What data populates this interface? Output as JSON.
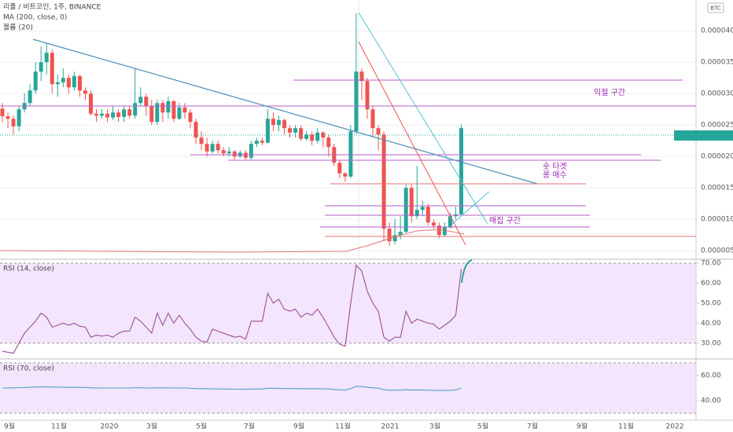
{
  "chart_data": {
    "type": "candlestick",
    "title": "리플 / 비트코인, 1주, BINANCE",
    "indicator_labels": [
      "MA (200, close, 0)",
      "볼륨 (20)"
    ],
    "currency": "BTC",
    "up_color": "#26a69a",
    "down_color": "#ef5350",
    "open": [
      2.76e-05,
      2.64e-05,
      2.6e-05,
      2.48e-05,
      2.75e-05,
      2.85e-05,
      3.05e-05,
      3.35e-05,
      3.5e-05,
      3.65e-05,
      3.15e-05,
      3.18e-05,
      3.25e-05,
      3.1e-05,
      3.28e-05,
      3.05e-05,
      3e-05,
      2.68e-05,
      2.65e-05,
      2.68e-05,
      2.62e-05,
      2.7e-05,
      2.63e-05,
      2.75e-05,
      2.65e-05,
      2.85e-05,
      2.95e-05,
      2.8e-05,
      2.55e-05,
      2.85e-05,
      2.7e-05,
      2.88e-05,
      2.6e-05,
      2.78e-05,
      2.7e-05,
      2.55e-05,
      2.3e-05,
      2.2e-05,
      2.08e-05,
      2.2e-05,
      2.1e-05,
      2.05e-05,
      2.08e-05,
      2e-05,
      2.06e-05,
      1.98e-05,
      2.2e-05,
      2.25e-05,
      2.22e-05,
      2.6e-05,
      2.5e-05,
      2.58e-05,
      2.45e-05,
      2.38e-05,
      2.45e-05,
      2.28e-05,
      2.35e-05,
      2.25e-05,
      2.38e-05,
      2.3e-05,
      2.15e-05,
      1.9e-05,
      1.73e-05,
      1.68e-05,
      2.4e-05,
      3.35e-05,
      3.2e-05,
      2.75e-05,
      2.45e-05,
      2.35e-05,
      8.5e-06,
      6.5e-06,
      7.5e-06,
      8e-06,
      1.5e-05,
      1.05e-05,
      1.15e-05,
      1.2e-05,
      9.5e-06,
      9e-06,
      7.5e-06,
      8.8e-06,
      1.05e-05,
      1.08e-05
    ],
    "high": [
      2.85e-05,
      2.7e-05,
      2.65e-05,
      2.8e-05,
      3e-05,
      3.15e-05,
      3.5e-05,
      3.75e-05,
      3.8e-05,
      3.7e-05,
      3.3e-05,
      3.4e-05,
      3.3e-05,
      3.35e-05,
      3.3e-05,
      3.1e-05,
      3.05e-05,
      2.75e-05,
      2.75e-05,
      2.75e-05,
      2.8e-05,
      2.75e-05,
      2.8e-05,
      2.8e-05,
      3.39e-05,
      3.1e-05,
      3e-05,
      2.9e-05,
      2.9e-05,
      2.9e-05,
      2.95e-05,
      2.9e-05,
      2.85e-05,
      2.85e-05,
      2.75e-05,
      2.6e-05,
      2.4e-05,
      2.3e-05,
      2.25e-05,
      2.25e-05,
      2.15e-05,
      2.15e-05,
      2.1e-05,
      2.1e-05,
      2.1e-05,
      2.25e-05,
      2.3e-05,
      2.3e-05,
      2.75e-05,
      2.7e-05,
      2.65e-05,
      2.6e-05,
      2.5e-05,
      2.5e-05,
      2.5e-05,
      2.4e-05,
      2.4e-05,
      2.45e-05,
      2.4e-05,
      2.35e-05,
      2.2e-05,
      1.95e-05,
      1.75e-05,
      2.5e-05,
      4.28e-05,
      3.4e-05,
      3.25e-05,
      2.8e-05,
      2.5e-05,
      2.4e-05,
      9.5e-06,
      1e-05,
      1.05e-05,
      1.55e-05,
      1.55e-05,
      1.85e-05,
      1.3e-05,
      1.25e-05,
      1e-05,
      9.5e-06,
      9.5e-06,
      1.1e-05,
      1.2e-05,
      2.51e-05
    ],
    "low": [
      2.55e-05,
      2.45e-05,
      2.35e-05,
      2.4e-05,
      2.7e-05,
      2.8e-05,
      3e-05,
      3.2e-05,
      3.3e-05,
      3e-05,
      2.95e-05,
      3.1e-05,
      3e-05,
      3.05e-05,
      2.95e-05,
      2.9e-05,
      2.65e-05,
      2.55e-05,
      2.6e-05,
      2.55e-05,
      2.58e-05,
      2.55e-05,
      2.55e-05,
      2.6e-05,
      2.6e-05,
      2.8e-05,
      2.65e-05,
      2.5e-05,
      2.5e-05,
      2.55e-05,
      2.6e-05,
      2.55e-05,
      2.58e-05,
      2.6e-05,
      2.45e-05,
      2.2e-05,
      2.1e-05,
      2e-05,
      2.05e-05,
      2.05e-05,
      2e-05,
      2e-05,
      1.95e-05,
      1.98e-05,
      1.95e-05,
      1.95e-05,
      2.15e-05,
      2.18e-05,
      2.2e-05,
      2.4e-05,
      2.4e-05,
      2.35e-05,
      2.3e-05,
      2.3e-05,
      2.25e-05,
      2.25e-05,
      2.18e-05,
      2.2e-05,
      2.15e-05,
      2e-05,
      1.85e-05,
      1.65e-05,
      1.6e-05,
      1.65e-05,
      2.35e-05,
      2.9e-05,
      2.6e-05,
      2.3e-05,
      2.1e-05,
      6.5e-06,
      5.8e-06,
      6e-06,
      6.8e-06,
      7.8e-06,
      9.5e-06,
      1e-05,
      1.05e-05,
      9e-06,
      8.5e-06,
      7e-06,
      7.2e-06,
      8.5e-06,
      1e-05,
      1.05e-05
    ],
    "close": [
      2.64e-05,
      2.6e-05,
      2.48e-05,
      2.75e-05,
      2.85e-05,
      3.05e-05,
      3.35e-05,
      3.5e-05,
      3.65e-05,
      3.15e-05,
      3.18e-05,
      3.25e-05,
      3.1e-05,
      3.28e-05,
      3.05e-05,
      3e-05,
      2.68e-05,
      2.65e-05,
      2.68e-05,
      2.62e-05,
      2.7e-05,
      2.63e-05,
      2.75e-05,
      2.65e-05,
      2.85e-05,
      2.95e-05,
      2.8e-05,
      2.55e-05,
      2.85e-05,
      2.7e-05,
      2.88e-05,
      2.6e-05,
      2.78e-05,
      2.7e-05,
      2.55e-05,
      2.3e-05,
      2.2e-05,
      2.08e-05,
      2.2e-05,
      2.1e-05,
      2.05e-05,
      2.08e-05,
      2e-05,
      2.06e-05,
      1.98e-05,
      2.2e-05,
      2.25e-05,
      2.22e-05,
      2.6e-05,
      2.5e-05,
      2.58e-05,
      2.45e-05,
      2.38e-05,
      2.45e-05,
      2.28e-05,
      2.35e-05,
      2.25e-05,
      2.38e-05,
      2.3e-05,
      2.15e-05,
      1.9e-05,
      1.73e-05,
      1.68e-05,
      2.4e-05,
      3.35e-05,
      3.2e-05,
      2.75e-05,
      2.45e-05,
      2.35e-05,
      8.5e-06,
      6.5e-06,
      7.5e-06,
      8e-06,
      1.5e-05,
      1.05e-05,
      1.15e-05,
      1.2e-05,
      9.5e-06,
      9e-06,
      7.5e-06,
      8.8e-06,
      1.05e-05,
      1.08e-05,
      2.45e-05
    ],
    "ylim": [
      3.9e-06,
      4.49e-05
    ],
    "yticks": [
      {
        "value": 4e-05,
        "label": "0.00004000"
      },
      {
        "value": 3.5e-05,
        "label": "0.00003500"
      },
      {
        "value": 3e-05,
        "label": "0.00003000"
      },
      {
        "value": 2.5e-05,
        "label": "0.00002500"
      },
      {
        "value": 2e-05,
        "label": "0.00002000"
      },
      {
        "value": 1.5e-05,
        "label": "0.00001500"
      },
      {
        "value": 1e-05,
        "label": "0.00001000"
      },
      {
        "value": 5e-06,
        "label": "0.00000500"
      }
    ],
    "x_labels": [
      "9월",
      "11월",
      "2020",
      "3월",
      "5월",
      "7월",
      "9월",
      "11월",
      "2021",
      "3월",
      "5월",
      "7월",
      "9월",
      "11월",
      "2022"
    ],
    "annotations": [
      "익절 구간",
      "숏 타겟",
      "롱 매수",
      "매집 구간"
    ],
    "rsi": {
      "title": "RSI (14, close)",
      "color": "#9c4f9c",
      "values": [
        26,
        25.5,
        25,
        30,
        35,
        38,
        41,
        45,
        43,
        38,
        39,
        40,
        39,
        40,
        38.5,
        38,
        33,
        34,
        33.5,
        34,
        33,
        35,
        36,
        36,
        43,
        41,
        38,
        35,
        45,
        39,
        45,
        40,
        44,
        40,
        37,
        33,
        31,
        30.5,
        37,
        36,
        35,
        34,
        33,
        33.5,
        32,
        41,
        41,
        41,
        55,
        50,
        52,
        47,
        46,
        47,
        43,
        45,
        44,
        47,
        43,
        38,
        33,
        29.5,
        28.5,
        50,
        69,
        66,
        56,
        50,
        46,
        33,
        31,
        33,
        33,
        46,
        40,
        42,
        41,
        40,
        39.5,
        37,
        39,
        41,
        44,
        67
      ],
      "ylim": [
        22.9,
        71.2
      ],
      "band": [
        30,
        70
      ],
      "yticks": [
        {
          "value": 70,
          "label": "70.00"
        },
        {
          "value": 60,
          "label": "60.00"
        },
        {
          "value": 50,
          "label": "50.00"
        },
        {
          "value": 40,
          "label": "40.00"
        },
        {
          "value": 30,
          "label": "30.00"
        }
      ]
    },
    "rsi_long": {
      "title": "RSI (70, close)",
      "color": "#4fa3c7",
      "values": [
        50.0,
        50.1,
        50.2,
        50.3,
        50.4,
        50.6,
        50.8,
        50.9,
        51.0,
        50.8,
        50.7,
        50.7,
        50.6,
        50.6,
        50.5,
        50.4,
        50.2,
        50.1,
        50.0,
        50.0,
        50.0,
        50.0,
        50.0,
        50.0,
        50.2,
        50.2,
        50.1,
        50.0,
        50.2,
        50.1,
        50.2,
        50.0,
        50.1,
        50.0,
        49.8,
        49.6,
        49.5,
        49.3,
        49.4,
        49.3,
        49.2,
        49.2,
        49.1,
        49.1,
        49.0,
        49.2,
        49.2,
        49.2,
        49.8,
        49.7,
        49.8,
        49.6,
        49.6,
        49.6,
        49.4,
        49.5,
        49.4,
        49.5,
        49.4,
        49.2,
        48.9,
        48.6,
        48.4,
        49.5,
        51.3,
        51.2,
        50.6,
        50.2,
        49.9,
        48.7,
        48.3,
        48.3,
        48.3,
        48.7,
        48.4,
        48.5,
        48.4,
        48.3,
        48.2,
        48.0,
        48.1,
        48.2,
        48.4,
        50.0
      ],
      "ylim": [
        24.4,
        72.5
      ],
      "band": [
        30,
        70
      ],
      "yticks": [
        {
          "value": 60,
          "label": "60.00"
        },
        {
          "value": 40,
          "label": "40.00"
        }
      ]
    }
  }
}
